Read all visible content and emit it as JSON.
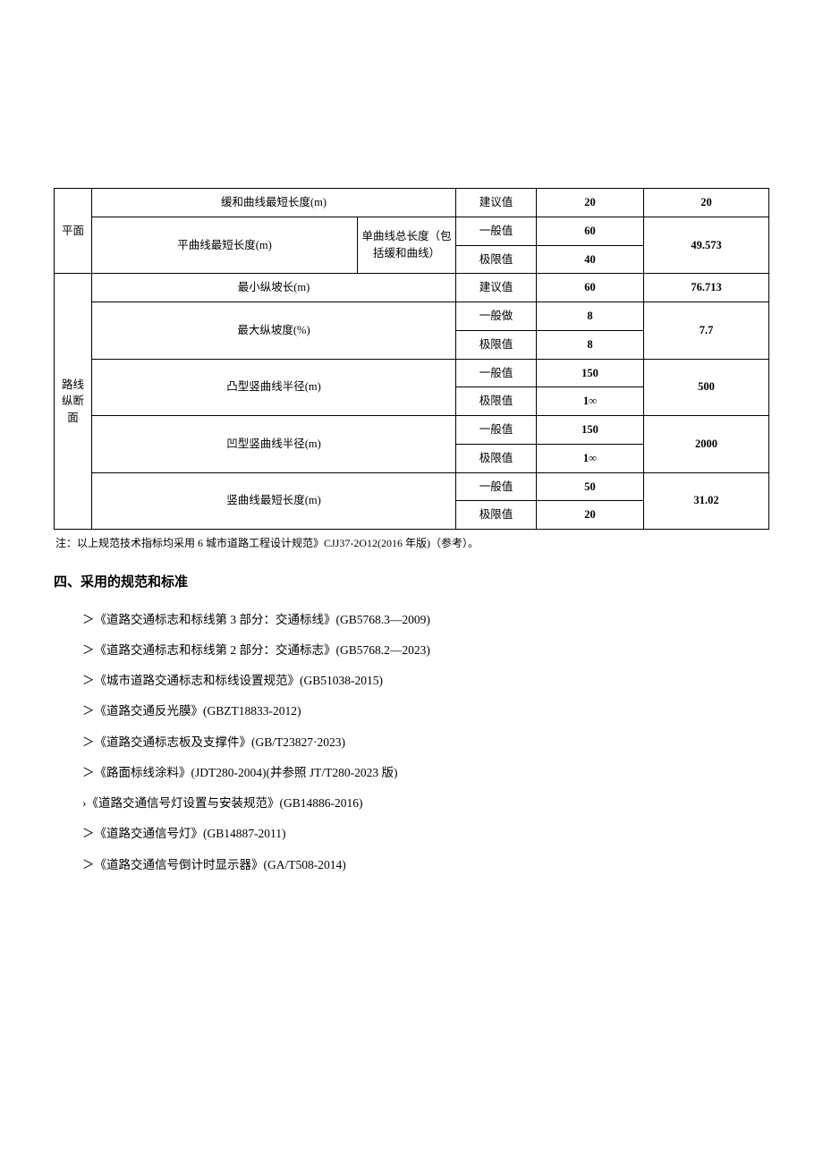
{
  "table": {
    "plane_section": {
      "category": "平面",
      "transition_curve": {
        "label": "缓和曲线最短长度(m)",
        "value_type": "建议值",
        "spec": "20",
        "actual": "20"
      },
      "flat_curve": {
        "label": "平曲线最短长度(m)",
        "sublabel": "单曲线总长度（包括缓和曲线）",
        "general": {
          "type": "一般值",
          "spec": "60"
        },
        "limit": {
          "type": "极限值",
          "spec": "40"
        },
        "actual": "49.573"
      }
    },
    "vertical_section": {
      "category": "路线纵断面",
      "min_slope_length": {
        "label": "最小纵坡长(m)",
        "value_type": "建议值",
        "spec": "60",
        "actual": "76.713"
      },
      "max_slope": {
        "label": "最大纵坡度(%)",
        "general": {
          "type": "一般做",
          "spec": "8"
        },
        "limit": {
          "type": "极限值",
          "spec": "8"
        },
        "actual": "7.7"
      },
      "convex_radius": {
        "label": "凸型竖曲线半径(m)",
        "general": {
          "type": "一般值",
          "spec": "150"
        },
        "limit": {
          "type": "极限值",
          "spec": "1∞"
        },
        "actual": "500"
      },
      "concave_radius": {
        "label": "凹型竖曲线半径(m)",
        "general": {
          "type": "一般值",
          "spec": "150"
        },
        "limit": {
          "type": "极限值",
          "spec": "1∞"
        },
        "actual": "2000"
      },
      "vertical_curve_length": {
        "label": "竖曲线最短长度(m)",
        "general": {
          "type": "一般值",
          "spec": "50"
        },
        "limit": {
          "type": "极限值",
          "spec": "20"
        },
        "actual": "31.02"
      }
    }
  },
  "note": "注：以上规范技术指标均采用 6 城市道路工程设计规范》CJJ37-2O12(2016 年版)（参考）。",
  "section_heading": "四、采用的规范和标准",
  "standards": [
    "＞《道路交通标志和标线第 3 部分：交通标线》(GB5768.3—2009)",
    "＞《道路交通标志和标线第 2 部分：交通标志》(GB5768.2—2023)",
    "＞《城市道路交通标志和标线设置规范》(GB51038-2015)",
    "＞《道路交通反光膜》(GBZT18833-2012)",
    "＞《道路交通标志板及支撑件》(GB/T23827·2023)",
    "＞《路面标线涂料》(JDT280-2004)(并参照 JT/T280-2023 版)",
    "›《道路交通信号灯设置与安装规范》(GB14886-2016)",
    "＞《道路交通信号灯》(GB14887-2011)",
    "＞《道路交通信号倒计时显示器》(GA/T508-2014)"
  ]
}
